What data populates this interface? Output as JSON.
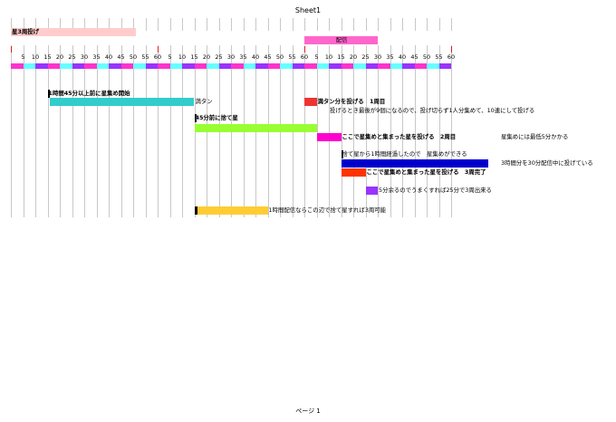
{
  "sheet_title": "Sheet1",
  "footer": "ページ 1",
  "ticks": [
    "5",
    "10",
    "15",
    "20",
    "25",
    "30",
    "35",
    "40",
    "45",
    "50",
    "55",
    "60"
  ],
  "colors": {
    "segment_cycle": [
      "#ff33cc",
      "#66ffff",
      "#9933ff"
    ],
    "pink_light": "#ffcccc",
    "pink": "#ff66cc",
    "cyan": "#33cccc",
    "red": "#ee3333",
    "lime": "#99ff33",
    "magenta": "#ff00cc",
    "navy": "#0000cc",
    "orange_red": "#ff3300",
    "purple": "#9933ff",
    "gold": "#ffcc33",
    "black": "#000000"
  },
  "rows": [
    {
      "id": "r1",
      "label": "星3周投げ",
      "bold": true
    },
    {
      "id": "r2",
      "label": "配信",
      "bold": false
    },
    {
      "id": "r3",
      "label": "1時間45分以上前に星集め開始",
      "bold": true
    },
    {
      "id": "r4",
      "label": "満タン",
      "bold": false
    },
    {
      "id": "r5",
      "label": "満タン分を投げる　1周目",
      "bold": true
    },
    {
      "id": "r6",
      "label": "投げるとき最後が9個になるので、投げ切らず1人分集めて、10連にして投げる",
      "bold": false
    },
    {
      "id": "r7",
      "label": "45分前に捨て星",
      "bold": true
    },
    {
      "id": "r8",
      "label": "ここで星集めと集まった星を投げる　2周目",
      "bold": true
    },
    {
      "id": "r9",
      "label": "星集めには最低5分かかる",
      "bold": false
    },
    {
      "id": "r10",
      "label": "捨て星から1時間経過したので　星集めができる",
      "bold": false
    },
    {
      "id": "r11",
      "label": "3時間分を30分配信中に投げている",
      "bold": false
    },
    {
      "id": "r12",
      "label": "ここで星集めと集まった星を投げる　3周完了",
      "bold": true
    },
    {
      "id": "r13",
      "label": "5分余るのでうまくすれば25分で3周出来る",
      "bold": false
    },
    {
      "id": "r14",
      "label": "1時間配信ならこの辺で捨て星すれば3周可能",
      "bold": false
    }
  ]
}
